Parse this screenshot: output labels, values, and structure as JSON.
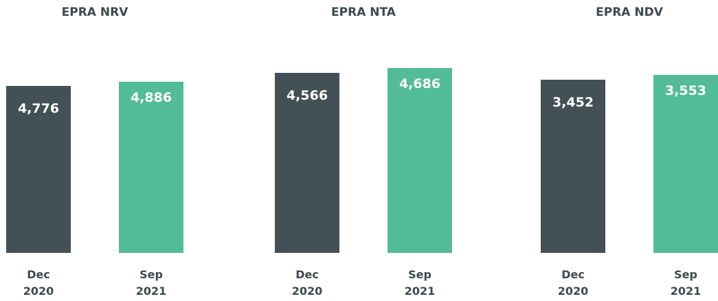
{
  "chart_data": [
    {
      "type": "bar",
      "title": "EPRA NRV",
      "categories": [
        "Dec 2020",
        "Sep 2021"
      ],
      "values": [
        4776,
        4886
      ],
      "value_labels": [
        "4,776",
        "4,886"
      ],
      "colors": [
        "#435055",
        "#52bb97"
      ],
      "ylim": [
        0,
        5300
      ]
    },
    {
      "type": "bar",
      "title": "EPRA NTA",
      "categories": [
        "Dec 2020",
        "Sep 2021"
      ],
      "values": [
        4566,
        4686
      ],
      "value_labels": [
        "4,566",
        "4,686"
      ],
      "colors": [
        "#435055",
        "#52bb97"
      ],
      "ylim": [
        0,
        4700
      ]
    },
    {
      "type": "bar",
      "title": "EPRA NDV",
      "categories": [
        "Dec 2020",
        "Sep 2021"
      ],
      "values": [
        3452,
        3553
      ],
      "value_labels": [
        "3,452",
        "3,553"
      ],
      "colors": [
        "#435055",
        "#52bb97"
      ],
      "ylim": [
        0,
        3700
      ]
    }
  ]
}
